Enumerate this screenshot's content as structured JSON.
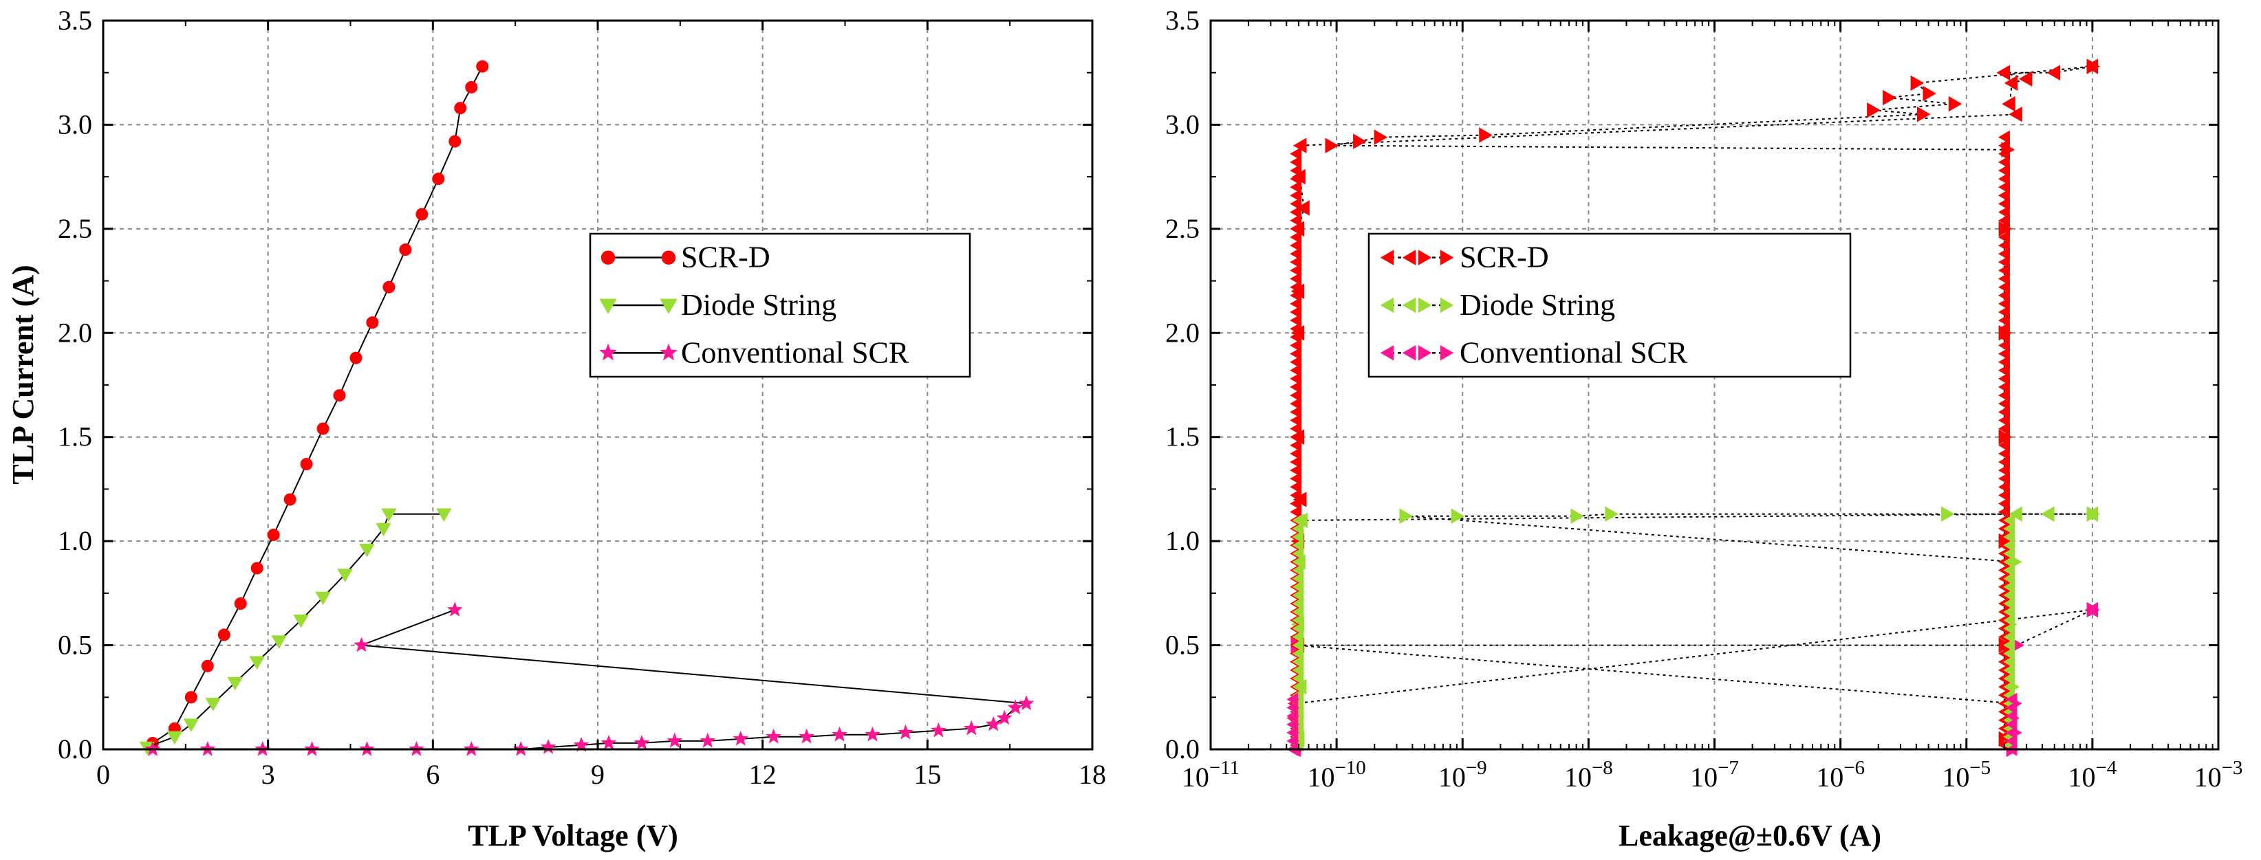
{
  "chart_data": [
    {
      "type": "scatter",
      "title": "",
      "xlabel": "TLP Voltage (V)",
      "ylabel": "TLP Current (A)",
      "xscale": "linear",
      "xlim": [
        0,
        18
      ],
      "ylim": [
        0,
        3.5
      ],
      "xticks": [
        0,
        3,
        6,
        9,
        12,
        15,
        18
      ],
      "xtick_labels": [
        "0",
        "3",
        "6",
        "9",
        "12",
        "15",
        "18"
      ],
      "yticks": [
        0,
        0.5,
        1,
        1.5,
        2,
        2.5,
        3,
        3.5
      ],
      "ytick_labels": [
        "0.0",
        "0.5",
        "1.0",
        "1.5",
        "2.0",
        "2.5",
        "3.0",
        "3.5"
      ],
      "grid": true,
      "legend_position": "center-right",
      "series": [
        {
          "name": "SCR-D",
          "marker": "circle",
          "color": "#ff0000",
          "line": "solid",
          "x": [
            0.9,
            1.3,
            1.6,
            1.9,
            2.2,
            2.5,
            2.8,
            3.1,
            3.4,
            3.7,
            4.0,
            4.3,
            4.6,
            4.9,
            5.2,
            5.5,
            5.8,
            6.1,
            6.4,
            6.5,
            6.7,
            6.9
          ],
          "y": [
            0.03,
            0.1,
            0.25,
            0.4,
            0.55,
            0.7,
            0.87,
            1.03,
            1.2,
            1.37,
            1.54,
            1.7,
            1.88,
            2.05,
            2.22,
            2.4,
            2.57,
            2.74,
            2.92,
            3.08,
            3.18,
            3.28
          ]
        },
        {
          "name": "Diode String",
          "marker": "triangle-down",
          "color": "#99dd33",
          "line": "solid",
          "x": [
            0.8,
            1.3,
            1.6,
            2.0,
            2.4,
            2.8,
            3.2,
            3.6,
            4.0,
            4.4,
            4.8,
            5.1,
            5.2,
            6.2
          ],
          "y": [
            0.01,
            0.06,
            0.12,
            0.22,
            0.32,
            0.42,
            0.52,
            0.62,
            0.73,
            0.84,
            0.96,
            1.06,
            1.13,
            1.13
          ]
        },
        {
          "name": "Conventional SCR",
          "marker": "star",
          "color": "#ff1493",
          "line": "solid",
          "x": [
            0.9,
            1.9,
            2.9,
            3.8,
            4.8,
            5.7,
            6.7,
            7.6,
            8.1,
            8.7,
            9.2,
            9.8,
            10.4,
            11.0,
            11.6,
            12.2,
            12.8,
            13.4,
            14.0,
            14.6,
            15.2,
            15.8,
            16.2,
            16.4,
            16.6,
            16.8,
            4.7,
            6.4
          ],
          "y": [
            0.0,
            0.0,
            0.0,
            0.0,
            0.0,
            0.0,
            0.0,
            0.0,
            0.01,
            0.02,
            0.03,
            0.03,
            0.04,
            0.04,
            0.05,
            0.06,
            0.06,
            0.07,
            0.07,
            0.08,
            0.09,
            0.1,
            0.12,
            0.15,
            0.2,
            0.22,
            0.5,
            0.67
          ]
        }
      ]
    },
    {
      "type": "scatter",
      "title": "",
      "xlabel": "Leakage@±0.6V (A)",
      "ylabel": "",
      "xscale": "log",
      "xlim": [
        1e-11,
        0.001
      ],
      "ylim": [
        0,
        3.5
      ],
      "xtick_exponents": [
        -11,
        -10,
        -9,
        -8,
        -7,
        -6,
        -5,
        -4,
        -3
      ],
      "yticks": [
        0,
        0.5,
        1,
        1.5,
        2,
        2.5,
        3,
        3.5
      ],
      "ytick_labels": [
        "0.0",
        "0.5",
        "1.0",
        "1.5",
        "2.0",
        "2.5",
        "3.0",
        "3.5"
      ],
      "grid": true,
      "legend_position": "center-left",
      "series": [
        {
          "name": "SCR-D",
          "marker": "triangle-left / triangle-right",
          "color": "#ff0000",
          "line": "dotted",
          "minus_leakage": {
            "x": [
              5e-11,
              5e-11,
              5e-11,
              5e-11,
              5e-11,
              5e-11,
              5.2e-11,
              5.1e-11,
              5e-11,
              5.2e-11,
              5.5e-11,
              2e-05,
              2.3e-05,
              2.2e-05,
              2.5e-05,
              3e-05,
              5e-05,
              0.0001
            ],
            "y": [
              0.05,
              0.5,
              1.0,
              1.5,
              2.0,
              2.5,
              2.9,
              2.75,
              2.2,
              1.2,
              2.6,
              3.25,
              3.2,
              3.1,
              3.05,
              3.22,
              3.25,
              3.28
            ]
          },
          "plus_leakage": {
            "x": [
              2e-05,
              2e-05,
              2e-05,
              2e-05,
              2e-05,
              2e-05,
              2.1e-05,
              9e-11,
              1.5e-10,
              2.2e-10,
              1.5e-09,
              1.8e-06,
              2.4e-06,
              4e-06,
              5e-06,
              8e-06,
              4.5e-06,
              0.0001
            ],
            "y": [
              0.05,
              0.5,
              1.0,
              1.5,
              2.0,
              2.5,
              2.88,
              2.9,
              2.92,
              2.94,
              2.95,
              3.07,
              3.13,
              3.2,
              3.15,
              3.1,
              3.05,
              3.28
            ]
          }
        },
        {
          "name": "Diode String",
          "marker": "triangle-left / triangle-right",
          "color": "#99dd33",
          "line": "dotted",
          "minus_leakage": {
            "x": [
              5e-11,
              5.2e-11,
              5e-11,
              5.1e-11,
              5.3e-11,
              2.5e-05,
              4.5e-05,
              0.0001
            ],
            "y": [
              0.05,
              0.3,
              0.6,
              0.9,
              1.1,
              1.13,
              1.13,
              1.13
            ]
          },
          "plus_leakage": {
            "x": [
              2.2e-05,
              2.3e-05,
              2.2e-05,
              2.4e-05,
              3.5e-10,
              9e-10,
              8e-09,
              1.5e-08,
              7e-06,
              0.0001
            ],
            "y": [
              0.05,
              0.3,
              0.6,
              0.9,
              1.12,
              1.12,
              1.12,
              1.13,
              1.13,
              1.13
            ]
          }
        },
        {
          "name": "Conventional SCR",
          "marker": "triangle-left / triangle-right",
          "color": "#ff1493",
          "line": "dotted",
          "minus_leakage": {
            "x": [
              4.7e-11,
              4.8e-11,
              4.6e-11,
              4.7e-11,
              0.0001
            ],
            "y": [
              0.0,
              0.08,
              0.15,
              0.22,
              0.67
            ]
          },
          "plus_leakage": {
            "x": [
              2.3e-05,
              2.4e-05,
              2.3e-05,
              2.4e-05,
              4.8e-11,
              2.5e-05,
              0.0001
            ],
            "y": [
              0.0,
              0.08,
              0.15,
              0.22,
              0.5,
              0.5,
              0.67
            ]
          }
        }
      ]
    }
  ]
}
